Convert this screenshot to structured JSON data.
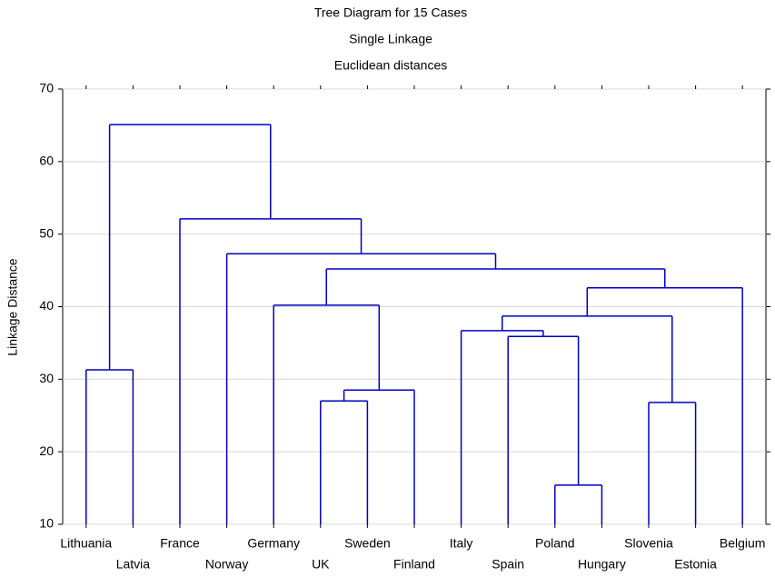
{
  "chart_data": {
    "type": "dendrogram",
    "title": "Tree Diagram for 15 Cases",
    "subtitle": "Single Linkage",
    "subtitle2": "Euclidean distances",
    "y_label": "Linkage Distance",
    "color": "#0000c0",
    "ylim": [
      10,
      70
    ],
    "yticks": [
      10,
      20,
      30,
      40,
      50,
      60,
      70
    ],
    "grid": true,
    "tree": {
      "height": 65.1,
      "children": [
        {
          "height": 31.3,
          "children": [
            "Lithuania",
            "Latvia"
          ]
        },
        {
          "height": 52.1,
          "children": [
            "France",
            {
              "height": 47.3,
              "children": [
                "Norway",
                {
                  "height": 45.2,
                  "children": [
                    {
                      "height": 40.2,
                      "children": [
                        "Germany",
                        {
                          "height": 28.5,
                          "children": [
                            {
                              "height": 27.0,
                              "children": [
                                "UK",
                                "Sweden"
                              ]
                            },
                            "Finland"
                          ]
                        }
                      ]
                    },
                    {
                      "height": 42.6,
                      "children": [
                        {
                          "height": 38.7,
                          "children": [
                            {
                              "height": 36.7,
                              "children": [
                                "Italy",
                                {
                                  "height": 35.9,
                                  "children": [
                                    "Spain",
                                    {
                                      "height": 15.4,
                                      "children": [
                                        "Poland",
                                        "Hungary"
                                      ]
                                    }
                                  ]
                                }
                              ]
                            },
                            {
                              "height": 26.8,
                              "children": [
                                "Slovenia",
                                "Estonia"
                              ]
                            }
                          ]
                        },
                        "Belgium"
                      ]
                    }
                  ]
                }
              ]
            }
          ]
        }
      ]
    }
  }
}
